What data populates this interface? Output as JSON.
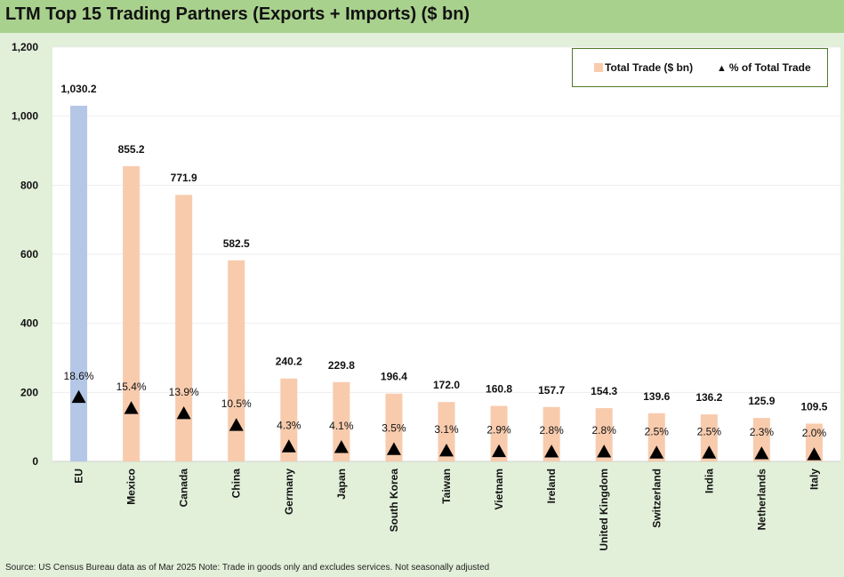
{
  "title": "LTM Top 15 Trading Partners (Exports + Imports) ($ bn)",
  "source": "Source: US Census Bureau data as of Mar 2025 Note: Trade in goods only and excludes services. Not seasonally adjusted",
  "colors": {
    "highlight_bar": "#b4c7e7",
    "bar": "#f8cbad",
    "marker": "#000000",
    "title_band": "#a9d18e",
    "page_bg": "#e2efd9"
  },
  "legend": {
    "bar_label": "Total Trade ($ bn)",
    "marker_label": "% of Total Trade",
    "position": "top-right"
  },
  "chart_data": {
    "type": "bar",
    "title": "LTM Top 15 Trading Partners (Exports + Imports) ($ bn)",
    "categories": [
      "EU",
      "Mexico",
      "Canada",
      "China",
      "Germany",
      "Japan",
      "South Korea",
      "Taiwan",
      "Vietnam",
      "Ireland",
      "United Kingdom",
      "Switzerland",
      "India",
      "Netherlands",
      "Italy"
    ],
    "series": [
      {
        "name": "Total Trade ($ bn)",
        "type": "bar",
        "values": [
          1030.2,
          855.2,
          771.9,
          582.5,
          240.2,
          229.8,
          196.4,
          172.0,
          160.8,
          157.7,
          154.3,
          139.6,
          136.2,
          125.9,
          109.5
        ],
        "labels": [
          "1,030.2",
          "855.2",
          "771.9",
          "582.5",
          "240.2",
          "229.8",
          "196.4",
          "172.0",
          "160.8",
          "157.7",
          "154.3",
          "139.6",
          "136.2",
          "125.9",
          "109.5"
        ]
      },
      {
        "name": "% of Total Trade",
        "type": "scatter",
        "values": [
          18.6,
          15.4,
          13.9,
          10.5,
          4.3,
          4.1,
          3.5,
          3.1,
          2.9,
          2.8,
          2.8,
          2.5,
          2.5,
          2.3,
          2.0
        ],
        "labels": [
          "18.6%",
          "15.4%",
          "13.9%",
          "10.5%",
          "4.3%",
          "4.1%",
          "3.5%",
          "3.1%",
          "2.9%",
          "2.8%",
          "2.8%",
          "2.5%",
          "2.5%",
          "2.3%",
          "2.0%"
        ]
      }
    ],
    "ylim": [
      0,
      1200
    ],
    "yticks": [
      "0",
      "200",
      "400",
      "600",
      "800",
      "1,000",
      "1,200"
    ],
    "grid": true
  }
}
